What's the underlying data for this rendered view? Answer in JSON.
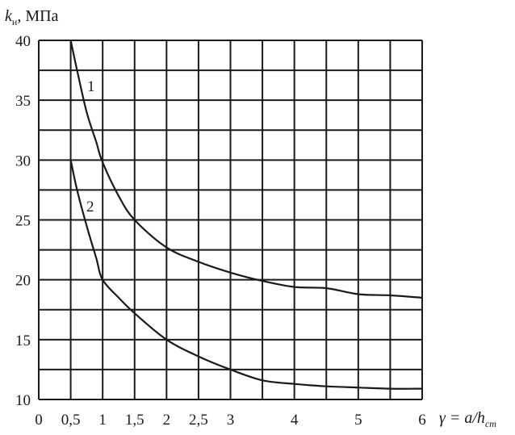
{
  "chart_data": {
    "type": "line",
    "title": "",
    "ylabel": "k",
    "ylabel_sub": "и",
    "ylabel_unit": ", МПа",
    "xlabel": "γ = a/h",
    "xlabel_sub": "ст",
    "xlim": [
      0,
      6
    ],
    "ylim": [
      10,
      40
    ],
    "grid": true,
    "x_ticks": [
      {
        "value": 0,
        "label": "0"
      },
      {
        "value": 0.5,
        "label": "0,5"
      },
      {
        "value": 1,
        "label": "1"
      },
      {
        "value": 1.5,
        "label": "1,5"
      },
      {
        "value": 2,
        "label": "2"
      },
      {
        "value": 2.5,
        "label": "2,5"
      },
      {
        "value": 3,
        "label": "3"
      },
      {
        "value": 4,
        "label": "4"
      },
      {
        "value": 5,
        "label": "5"
      },
      {
        "value": 6,
        "label": "6"
      }
    ],
    "y_ticks": [
      {
        "value": 10,
        "label": "10"
      },
      {
        "value": 15,
        "label": "15"
      },
      {
        "value": 20,
        "label": "20"
      },
      {
        "value": 25,
        "label": "25"
      },
      {
        "value": 30,
        "label": "30"
      },
      {
        "value": 35,
        "label": "35"
      },
      {
        "value": 40,
        "label": "40"
      }
    ],
    "series": [
      {
        "name": "1",
        "x": [
          0.5,
          0.6,
          0.75,
          0.9,
          1.0,
          1.25,
          1.5,
          2.0,
          2.5,
          3.0,
          3.5,
          4.0,
          4.5,
          5.0,
          5.5,
          6.0
        ],
        "y": [
          40,
          37.5,
          34,
          31.5,
          29.8,
          27,
          25,
          22.7,
          21.5,
          20.6,
          19.9,
          19.4,
          19.3,
          18.8,
          18.7,
          18.5
        ]
      },
      {
        "name": "2",
        "x": [
          0.5,
          0.6,
          0.75,
          0.9,
          1.0,
          1.25,
          1.5,
          2.0,
          2.5,
          3.0,
          3.5,
          4.0,
          4.5,
          5.0,
          5.5,
          6.0
        ],
        "y": [
          30,
          27.5,
          24.5,
          21.8,
          20,
          18.5,
          17.2,
          15,
          13.6,
          12.5,
          11.6,
          11.3,
          11.1,
          11.0,
          10.9,
          10.9
        ]
      }
    ]
  }
}
